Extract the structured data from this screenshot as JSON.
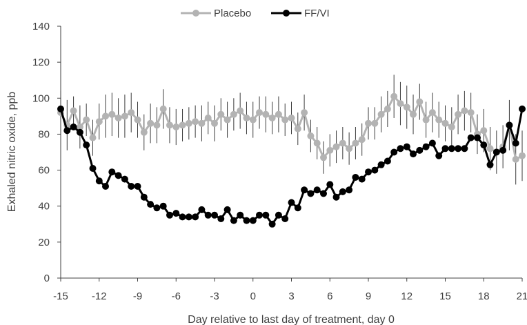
{
  "chart_data": {
    "type": "line",
    "xlabel": "Day relative to last day of treatment, day 0",
    "ylabel": "Exhaled nitric oxide, ppb",
    "xlim": [
      -15,
      21
    ],
    "ylim": [
      0,
      140
    ],
    "x_ticks": [
      "-15",
      "-12",
      "-9",
      "-6",
      "-3",
      "0",
      "3",
      "6",
      "9",
      "12",
      "15",
      "18",
      "21"
    ],
    "y_ticks": [
      "0",
      "20",
      "40",
      "60",
      "80",
      "100",
      "120",
      "140"
    ],
    "grid": false,
    "legend_position": "top",
    "error_bars": true,
    "series": [
      {
        "name": "Placebo",
        "color": "#b3b3b3",
        "x": [
          -15,
          -14.5,
          -14,
          -13.5,
          -13,
          -12.5,
          -12,
          -11.5,
          -11,
          -10.5,
          -10,
          -9.5,
          -9,
          -8.5,
          -8,
          -7.5,
          -7,
          -6.5,
          -6,
          -5.5,
          -5,
          -4.5,
          -4,
          -3.5,
          -3,
          -2.5,
          -2,
          -1.5,
          -1,
          -0.5,
          0,
          0.5,
          1,
          1.5,
          2,
          2.5,
          3,
          3.5,
          4,
          4.5,
          5,
          5.5,
          6,
          6.5,
          7,
          7.5,
          8,
          8.5,
          9,
          9.5,
          10,
          10.5,
          11,
          11.5,
          12,
          12.5,
          13,
          13.5,
          14,
          14.5,
          15,
          15.5,
          16,
          16.5,
          17,
          17.5,
          18,
          18.5,
          19,
          19.5,
          20,
          20.5,
          21
        ],
        "values": [
          92,
          85,
          93,
          84,
          88,
          78,
          87,
          90,
          91,
          89,
          90,
          92,
          88,
          81,
          86,
          85,
          94,
          85,
          84,
          85,
          86,
          87,
          86,
          89,
          86,
          91,
          88,
          91,
          93,
          89,
          88,
          92,
          91,
          89,
          91,
          88,
          89,
          83,
          92,
          79,
          75,
          67,
          71,
          73,
          75,
          72,
          75,
          77,
          86,
          86,
          91,
          94,
          101,
          97,
          95,
          91,
          98,
          88,
          92,
          88,
          86,
          84,
          91,
          93,
          92,
          80,
          82,
          72,
          70,
          73,
          85,
          66,
          68
        ],
        "errors": [
          12,
          14,
          8,
          12,
          9,
          10,
          10,
          12,
          12,
          11,
          12,
          11,
          10,
          10,
          11,
          10,
          11,
          10,
          10,
          9,
          9,
          9,
          10,
          9,
          10,
          9,
          10,
          9,
          10,
          9,
          10,
          9,
          10,
          9,
          10,
          9,
          9,
          9,
          10,
          9,
          9,
          9,
          9,
          9,
          9,
          9,
          9,
          9,
          9,
          9,
          10,
          10,
          12,
          12,
          12,
          11,
          10,
          10,
          11,
          10,
          10,
          11,
          11,
          11,
          11,
          11,
          12,
          12,
          12,
          12,
          14,
          14,
          14
        ]
      },
      {
        "name": "FF/VI",
        "color": "#000000",
        "x": [
          -15,
          -14.5,
          -14,
          -13.5,
          -13,
          -12.5,
          -12,
          -11.5,
          -11,
          -10.5,
          -10,
          -9.5,
          -9,
          -8.5,
          -8,
          -7.5,
          -7,
          -6.5,
          -6,
          -5.5,
          -5,
          -4.5,
          -4,
          -3.5,
          -3,
          -2.5,
          -2,
          -1.5,
          -1,
          -0.5,
          0,
          0.5,
          1,
          1.5,
          2,
          2.5,
          3,
          3.5,
          4,
          4.5,
          5,
          5.5,
          6,
          6.5,
          7,
          7.5,
          8,
          8.5,
          9,
          9.5,
          10,
          10.5,
          11,
          11.5,
          12,
          12.5,
          13,
          13.5,
          14,
          14.5,
          15,
          15.5,
          16,
          16.5,
          17,
          17.5,
          18,
          18.5,
          19,
          19.5,
          20,
          20.5,
          21
        ],
        "values": [
          94,
          82,
          84,
          81,
          74,
          61,
          54,
          51,
          59,
          57,
          55,
          51,
          51,
          45,
          41,
          39,
          40,
          35,
          36,
          34,
          34,
          34,
          38,
          35,
          35,
          33,
          38,
          32,
          35,
          32,
          32,
          35,
          35,
          30,
          35,
          33,
          42,
          39,
          49,
          47,
          49,
          47,
          52,
          45,
          48,
          49,
          56,
          55,
          59,
          60,
          63,
          65,
          70,
          72,
          73,
          69,
          71,
          73,
          75,
          68,
          72,
          72,
          72,
          72,
          78,
          78,
          74,
          63,
          70,
          71,
          85,
          75,
          94
        ]
      }
    ]
  }
}
